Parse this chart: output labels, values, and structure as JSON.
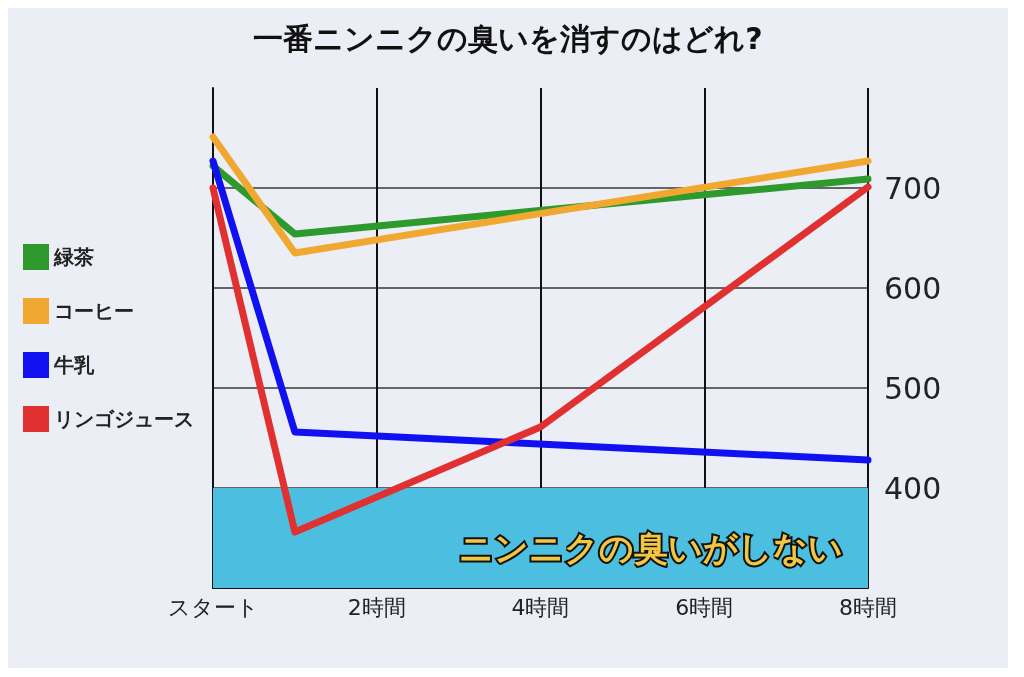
{
  "chart_data": {
    "type": "line",
    "title": "一番ニンニクの臭いを消すのはどれ?",
    "series": [
      {
        "name": "緑茶",
        "color": "#2e9a2e",
        "x": [
          0,
          1,
          8
        ],
        "values": [
          722,
          654,
          709
        ]
      },
      {
        "name": "コーヒー",
        "color": "#f0a830",
        "x": [
          0,
          1,
          8
        ],
        "values": [
          751,
          635,
          727
        ]
      },
      {
        "name": "牛乳",
        "color": "#1010f0",
        "x": [
          0,
          1,
          8
        ],
        "values": [
          727,
          456,
          428
        ]
      },
      {
        "name": "リンゴジュース",
        "color": "#e03030",
        "x": [
          0,
          1,
          4,
          8
        ],
        "values": [
          700,
          356,
          461,
          701
        ]
      }
    ],
    "xlim": [
      0,
      8
    ],
    "xticks": [
      {
        "value": 0,
        "label": "スタート"
      },
      {
        "value": 2,
        "label": "2時間"
      },
      {
        "value": 4,
        "label": "4時間"
      },
      {
        "value": 6,
        "label": "6時間"
      },
      {
        "value": 8,
        "label": "8時間"
      }
    ],
    "ylim": [
      300,
      800
    ],
    "yticks": [
      400,
      500,
      600,
      700
    ],
    "bands": [
      {
        "axis": "y",
        "from": 300,
        "to": 400,
        "label": "ニンニクの臭いがしない",
        "color": "#4cbfe0"
      }
    ],
    "grid": true,
    "legend": "left",
    "marker": "none",
    "line_style": "solid"
  }
}
